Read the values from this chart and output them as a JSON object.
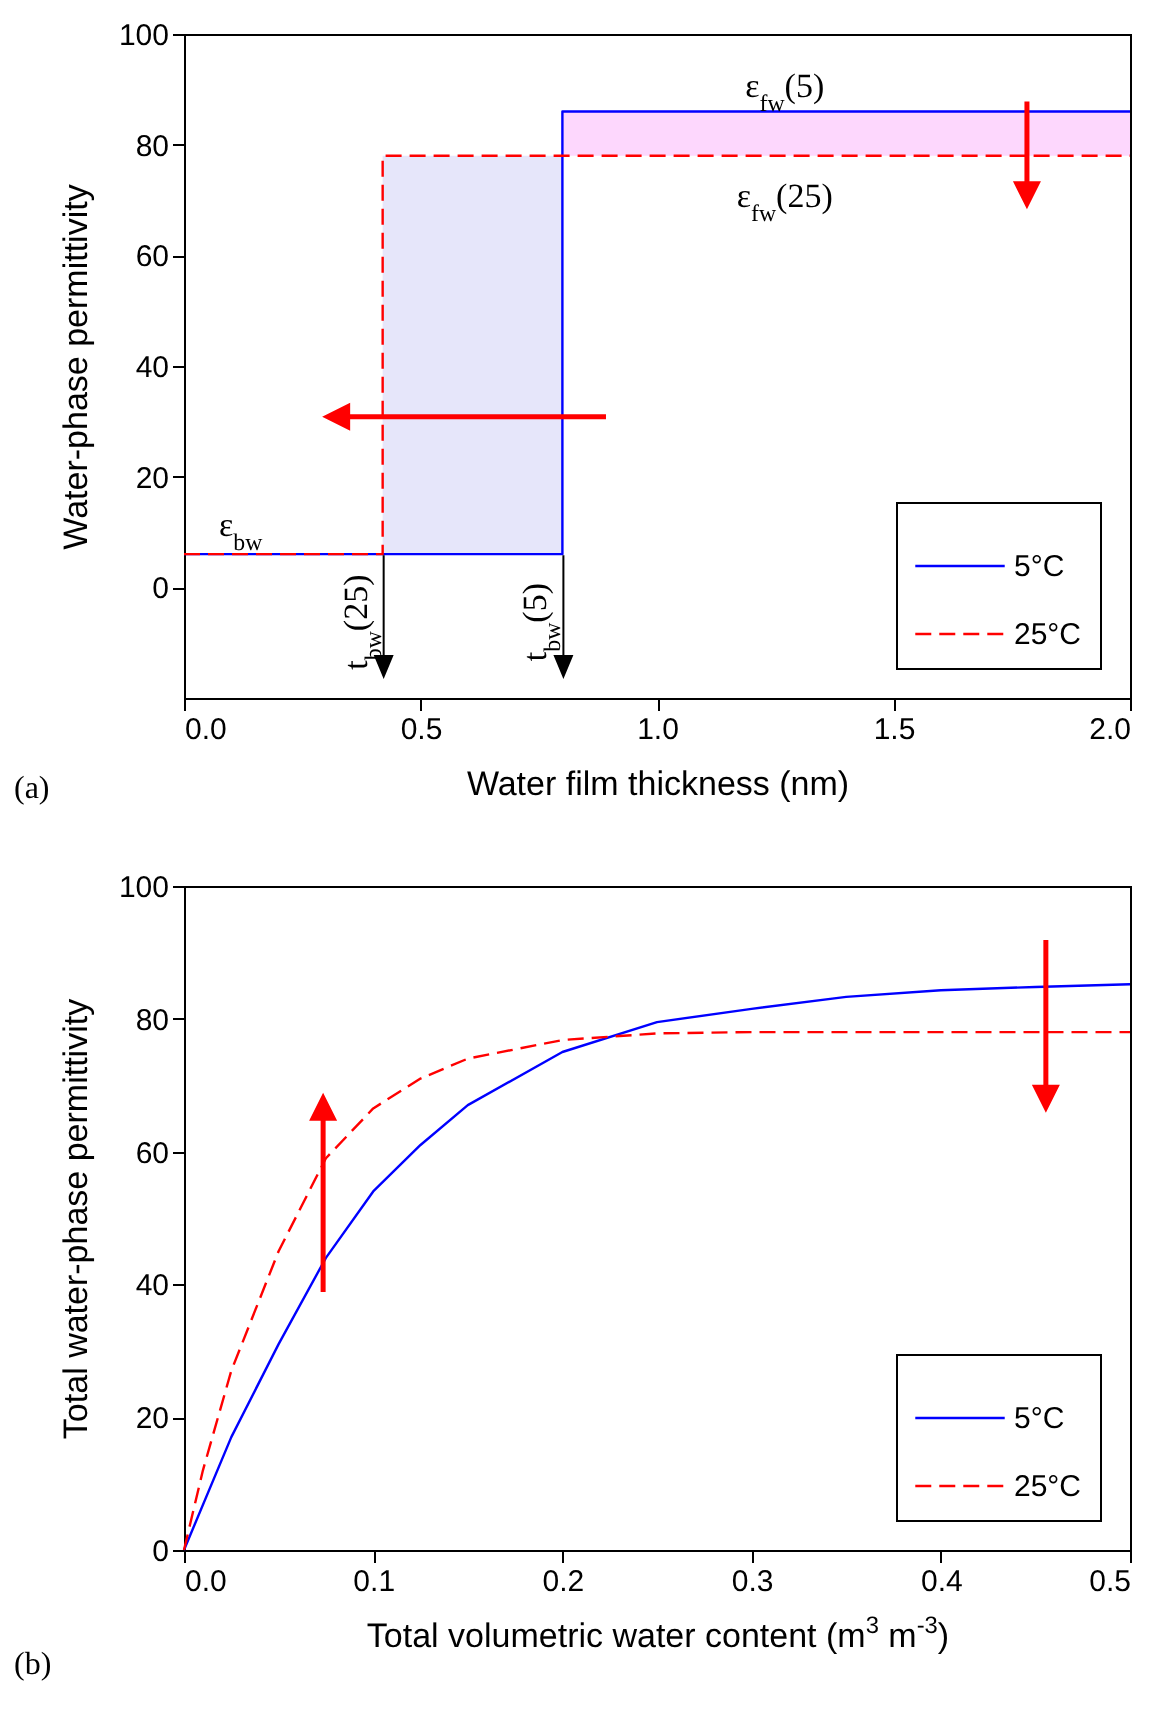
{
  "chart_data": [
    {
      "type": "step",
      "xlabel": "Water film thickness (nm)",
      "ylabel": "Water-phase permittivity",
      "xlim": [
        0,
        2
      ],
      "xticks": [
        {
          "value": 0,
          "label": "0.0"
        },
        0.5,
        {
          "value": 1,
          "label": "1.0"
        },
        1.5,
        {
          "value": 2,
          "label": "2.0"
        }
      ],
      "ylim": [
        -20,
        100
      ],
      "yticks": [
        0,
        20,
        40,
        60,
        80,
        100
      ],
      "legend": "bottom right",
      "series": [
        {
          "type": "line",
          "x": [
            0.42,
            0.8
          ],
          "values": [
            null,
            null
          ],
          "lower": [
            6,
            6
          ],
          "upper": [
            78,
            78
          ],
          "color": "#e6e6fa"
        },
        {
          "type": "line",
          "x": [
            0.8,
            2
          ],
          "values": [
            null,
            null
          ],
          "lower": [
            78,
            78
          ],
          "upper": [
            86,
            86
          ],
          "color": "#fdd7fd"
        },
        {
          "name": "5°C",
          "x": [
            0,
            0.8,
            2
          ],
          "values": [
            6,
            86,
            86
          ],
          "color": "#0000ff",
          "line_style": "solid"
        },
        {
          "name": "25°C",
          "x": [
            0,
            0.42,
            2
          ],
          "values": [
            6,
            78,
            78
          ],
          "color": "#ff0000",
          "line_style": "dashed"
        }
      ],
      "annotations": [
        "ε$_{fw}$(5)",
        "ε$_{fw}$(25)",
        "ε$_{bw}$",
        {
          "text": "t$_{bw}$(25)",
          "x": 0.42,
          "y": 6
        },
        {
          "text": "t$_{bw}$(5)",
          "x": 0.8,
          "y": 6
        },
        "(a)"
      ]
    },
    {
      "type": "line",
      "xlabel": "Total volumetric water content (m$^{3}$ m$^{-3}$)",
      "ylabel": "Total water-phase permittivity",
      "xlim": [
        0,
        0.5
      ],
      "xticks": [
        {
          "value": 0,
          "label": "0.0"
        },
        0.1,
        0.2,
        0.3,
        0.4,
        0.5
      ],
      "ylim": [
        0,
        100
      ],
      "yticks": [
        0,
        20,
        40,
        60,
        80,
        100
      ],
      "legend": "bottom right",
      "series": [
        {
          "name": "5°C",
          "x": [
            0,
            0.025,
            0.05,
            0.075,
            0.1,
            0.125,
            0.15,
            0.2,
            0.25,
            0.3,
            0.35,
            0.4,
            0.45,
            0.5
          ],
          "values": [
            0,
            17,
            31,
            44,
            54,
            61,
            67,
            75,
            79.5,
            81.5,
            83.3,
            84.3,
            84.8,
            85.2
          ],
          "color": "#0000ff",
          "line_style": "solid"
        },
        {
          "name": "25°C",
          "x": [
            0,
            0.01,
            0.025,
            0.05,
            0.075,
            0.1,
            0.125,
            0.15,
            0.2,
            0.25,
            0.3,
            0.5
          ],
          "values": [
            0,
            12,
            27,
            45,
            59,
            66.5,
            71,
            74,
            76.8,
            77.8,
            78,
            78
          ],
          "color": "#ff0000",
          "line_style": "dashed"
        }
      ],
      "annotations": [
        "(b)"
      ]
    }
  ]
}
